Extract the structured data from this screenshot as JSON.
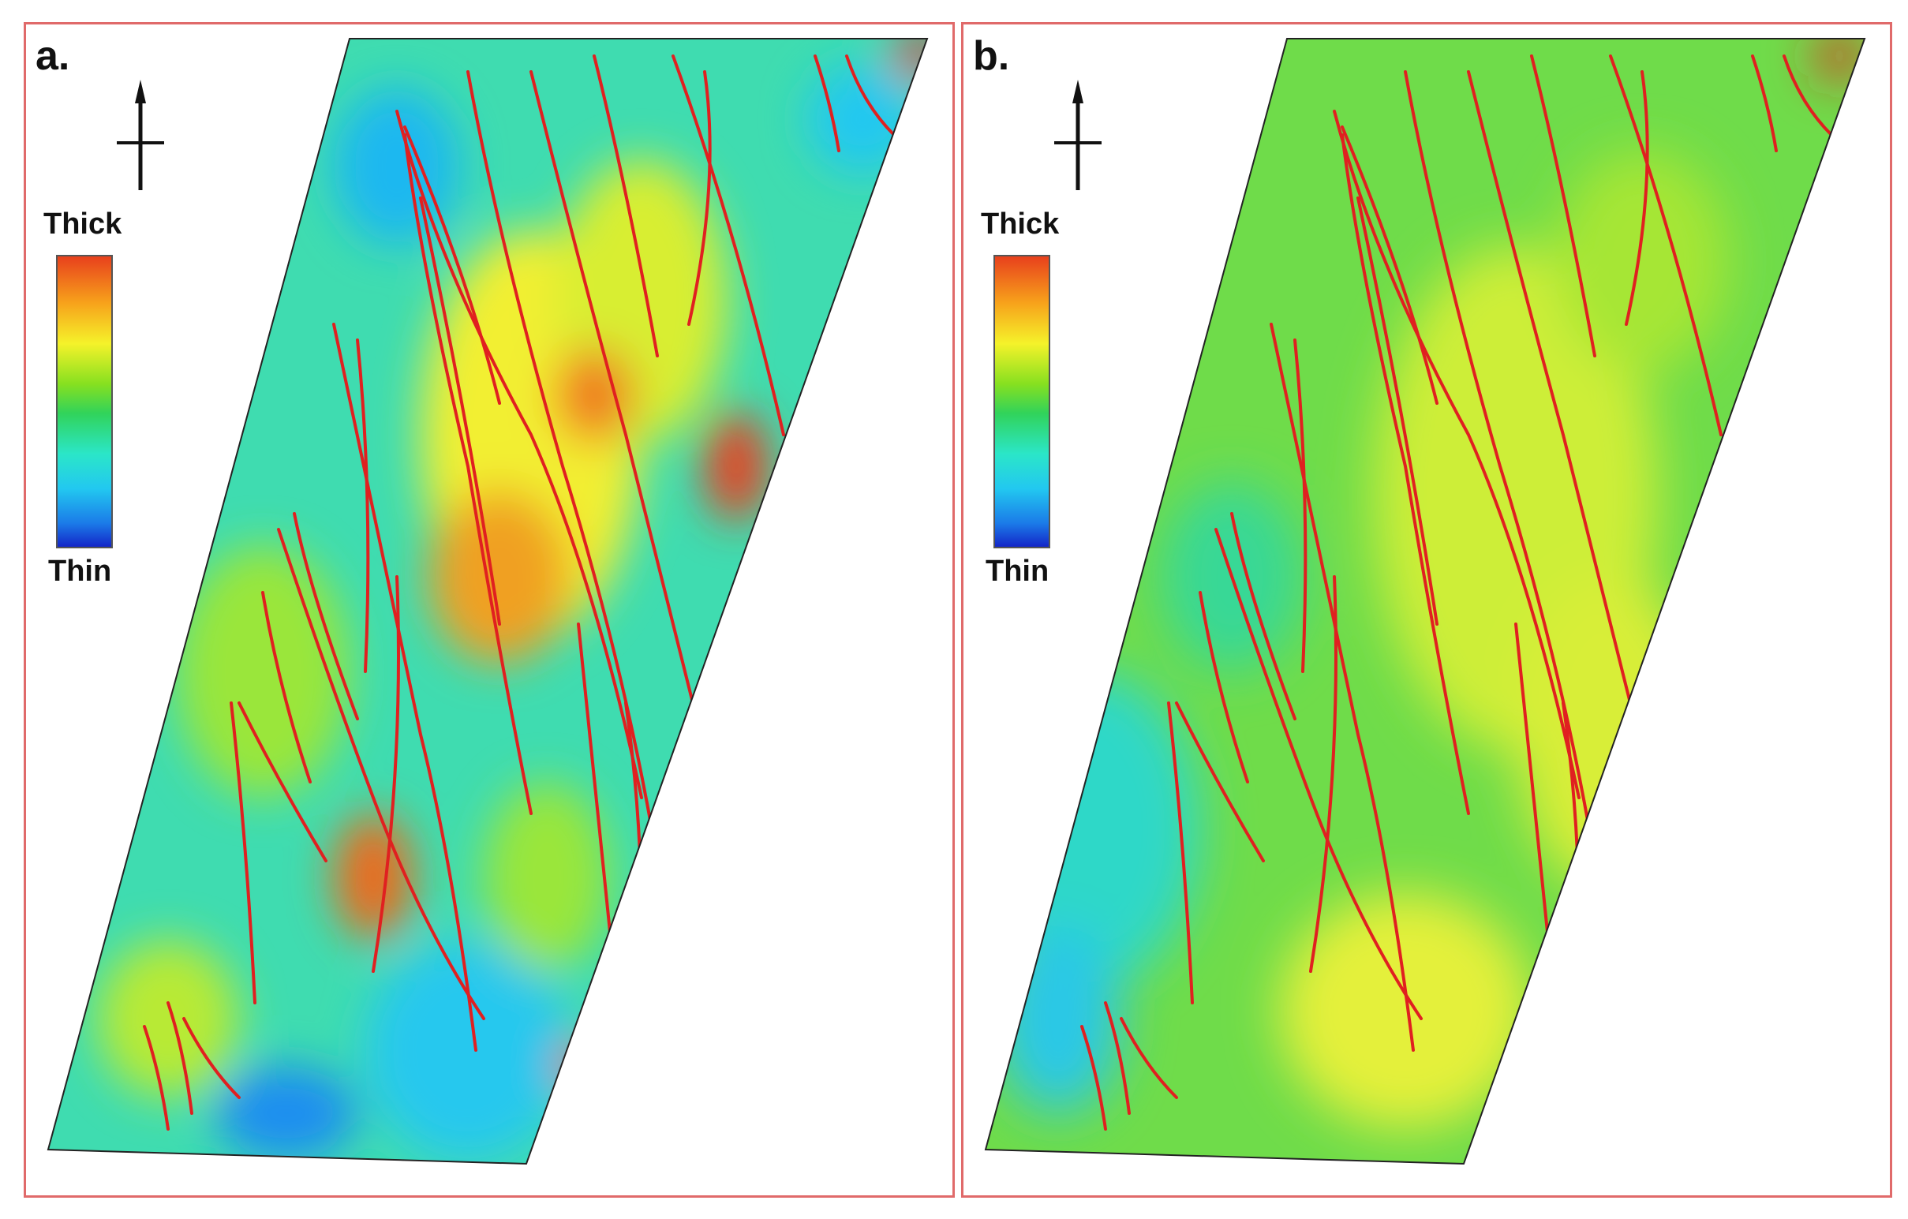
{
  "panels": [
    {
      "label": "a.",
      "legend": {
        "top_label": "Thick",
        "bottom_label": "Thin"
      },
      "colors": {
        "base": "#3fdcb0",
        "border": "#e06a6a",
        "fault": "#e02020"
      }
    },
    {
      "label": "b.",
      "legend": {
        "top_label": "Thick",
        "bottom_label": "Thin"
      },
      "colors": {
        "base": "#6fdc4a",
        "border": "#e06a6a",
        "fault": "#e02020"
      }
    }
  ]
}
